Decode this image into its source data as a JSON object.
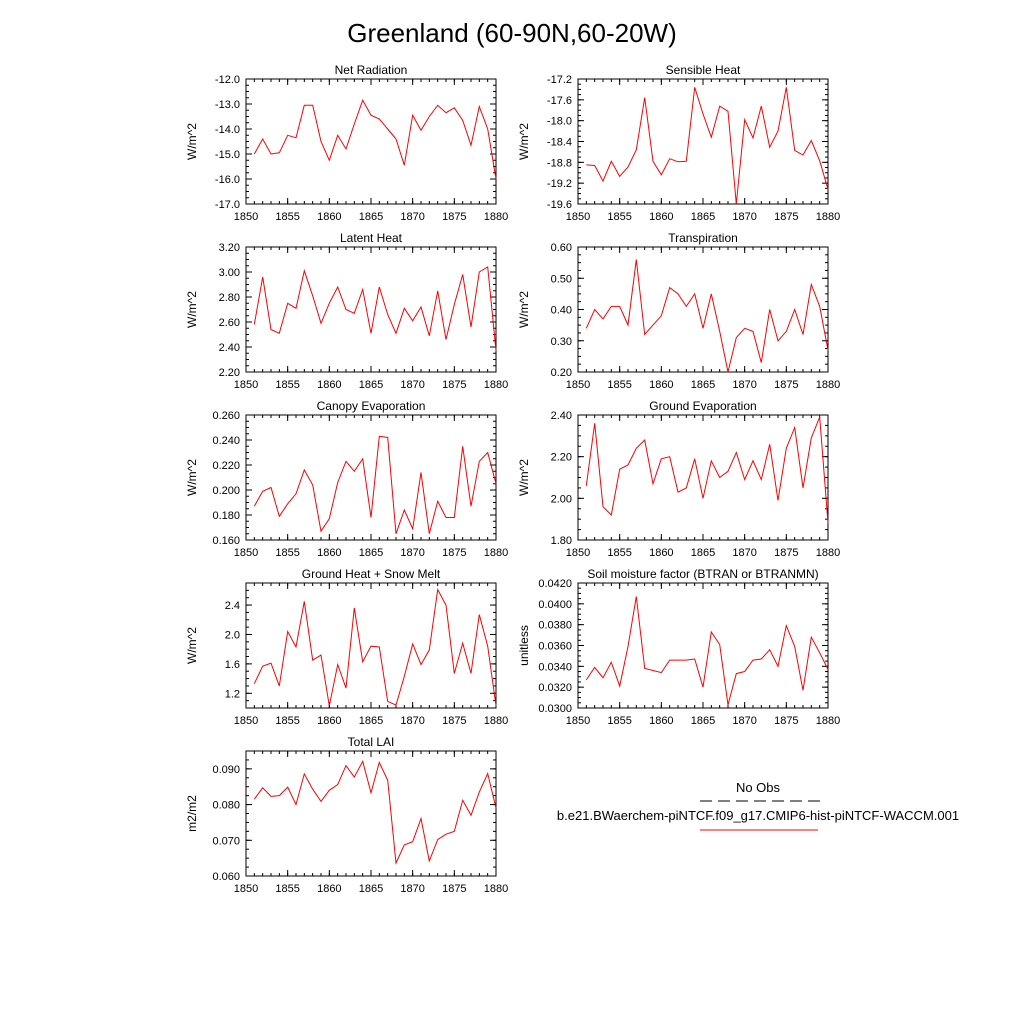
{
  "page_title": "Greenland (60-90N,60-20W)",
  "legend": {
    "obs_label": "No Obs",
    "case_label": "b.e21.BWaerchem-piNTCF.f09_g17.CMIP6-hist-piNTCF-WACCM.001",
    "obs_color": "#000000",
    "case_color": "#ff0000"
  },
  "colors": {
    "line": "#ff0000",
    "axis": "#000000"
  },
  "chart_data": [
    {
      "type": "line",
      "title": "Net Radiation",
      "xlabel": "",
      "ylabel": "W/m^2",
      "xlim": [
        1850,
        1880
      ],
      "ylim": [
        -17.0,
        -12.0
      ],
      "xticks": [
        1850,
        1855,
        1860,
        1865,
        1870,
        1875,
        1880
      ],
      "xtick_labels": [
        "1850",
        "1855",
        "1860",
        "1865",
        "1870",
        "1875",
        "1880"
      ],
      "yticks": [
        -17.0,
        -16.0,
        -15.0,
        -14.0,
        -13.0,
        -12.0
      ],
      "ytick_labels": [
        "-17.0",
        "-16.0",
        "-15.0",
        "-14.0",
        "-13.0",
        "-12.0"
      ],
      "x": [
        1851,
        1852,
        1853,
        1854,
        1855,
        1856,
        1857,
        1858,
        1859,
        1860,
        1861,
        1862,
        1863,
        1864,
        1865,
        1866,
        1867,
        1868,
        1869,
        1870,
        1871,
        1872,
        1873,
        1874,
        1875,
        1876,
        1877,
        1878,
        1879,
        1880
      ],
      "series": [
        {
          "values": [
            -15.0,
            -14.4,
            -15.0,
            -14.95,
            -14.25,
            -14.35,
            -13.05,
            -13.05,
            -14.5,
            -15.25,
            -14.25,
            -14.8,
            -13.8,
            -12.85,
            -13.45,
            -13.6,
            -14.0,
            -14.4,
            -15.45,
            -13.45,
            -14.05,
            -13.5,
            -13.05,
            -13.35,
            -13.15,
            -13.65,
            -14.65,
            -13.1,
            -14.0,
            -16.0
          ]
        }
      ]
    },
    {
      "type": "line",
      "title": "Sensible Heat",
      "xlabel": "",
      "ylabel": "W/m^2",
      "xlim": [
        1850,
        1880
      ],
      "ylim": [
        -19.6,
        -17.2
      ],
      "xticks": [
        1850,
        1855,
        1860,
        1865,
        1870,
        1875,
        1880
      ],
      "xtick_labels": [
        "1850",
        "1855",
        "1860",
        "1865",
        "1870",
        "1875",
        "1880"
      ],
      "yticks": [
        -19.6,
        -19.2,
        -18.8,
        -18.4,
        -18.0,
        -17.6,
        -17.2
      ],
      "ytick_labels": [
        "-19.6",
        "-19.2",
        "-18.8",
        "-18.4",
        "-18.0",
        "-17.6",
        "-17.2"
      ],
      "x": [
        1851,
        1852,
        1853,
        1854,
        1855,
        1856,
        1857,
        1858,
        1859,
        1860,
        1861,
        1862,
        1863,
        1864,
        1865,
        1866,
        1867,
        1868,
        1869,
        1870,
        1871,
        1872,
        1873,
        1874,
        1875,
        1876,
        1877,
        1878,
        1879,
        1880
      ],
      "series": [
        {
          "values": [
            -18.85,
            -18.86,
            -19.16,
            -18.78,
            -19.07,
            -18.89,
            -18.56,
            -17.56,
            -18.78,
            -19.04,
            -18.73,
            -18.79,
            -18.78,
            -17.36,
            -17.87,
            -18.32,
            -17.72,
            -17.82,
            -19.6,
            -17.98,
            -18.33,
            -17.72,
            -18.51,
            -18.2,
            -17.36,
            -18.57,
            -18.66,
            -18.38,
            -18.77,
            -19.32
          ]
        }
      ]
    },
    {
      "type": "line",
      "title": "Latent Heat",
      "xlabel": "",
      "ylabel": "W/m^2",
      "xlim": [
        1850,
        1880
      ],
      "ylim": [
        2.2,
        3.2
      ],
      "xticks": [
        1850,
        1855,
        1860,
        1865,
        1870,
        1875,
        1880
      ],
      "xtick_labels": [
        "1850",
        "1855",
        "1860",
        "1865",
        "1870",
        "1875",
        "1880"
      ],
      "yticks": [
        2.2,
        2.4,
        2.6,
        2.8,
        3.0,
        3.2
      ],
      "ytick_labels": [
        "2.20",
        "2.40",
        "2.60",
        "2.80",
        "3.00",
        "3.20"
      ],
      "x": [
        1851,
        1852,
        1853,
        1854,
        1855,
        1856,
        1857,
        1858,
        1859,
        1860,
        1861,
        1862,
        1863,
        1864,
        1865,
        1866,
        1867,
        1868,
        1869,
        1870,
        1871,
        1872,
        1873,
        1874,
        1875,
        1876,
        1877,
        1878,
        1879,
        1880
      ],
      "series": [
        {
          "values": [
            2.58,
            2.96,
            2.54,
            2.51,
            2.75,
            2.71,
            3.01,
            2.81,
            2.59,
            2.75,
            2.88,
            2.7,
            2.67,
            2.86,
            2.51,
            2.88,
            2.66,
            2.51,
            2.71,
            2.61,
            2.72,
            2.49,
            2.85,
            2.46,
            2.74,
            2.98,
            2.56,
            3.0,
            3.04,
            2.37
          ]
        }
      ]
    },
    {
      "type": "line",
      "title": "Transpiration",
      "xlabel": "",
      "ylabel": "W/m^2",
      "xlim": [
        1850,
        1880
      ],
      "ylim": [
        0.2,
        0.6
      ],
      "xticks": [
        1850,
        1855,
        1860,
        1865,
        1870,
        1875,
        1880
      ],
      "xtick_labels": [
        "1850",
        "1855",
        "1860",
        "1865",
        "1870",
        "1875",
        "1880"
      ],
      "yticks": [
        0.2,
        0.3,
        0.4,
        0.5,
        0.6
      ],
      "ytick_labels": [
        "0.20",
        "0.30",
        "0.40",
        "0.50",
        "0.60"
      ],
      "x": [
        1851,
        1852,
        1853,
        1854,
        1855,
        1856,
        1857,
        1858,
        1859,
        1860,
        1861,
        1862,
        1863,
        1864,
        1865,
        1866,
        1867,
        1868,
        1869,
        1870,
        1871,
        1872,
        1873,
        1874,
        1875,
        1876,
        1877,
        1878,
        1879,
        1880
      ],
      "series": [
        {
          "values": [
            0.34,
            0.4,
            0.37,
            0.41,
            0.41,
            0.35,
            0.56,
            0.32,
            0.35,
            0.38,
            0.47,
            0.45,
            0.41,
            0.45,
            0.34,
            0.45,
            0.33,
            0.2,
            0.31,
            0.34,
            0.33,
            0.23,
            0.4,
            0.3,
            0.33,
            0.4,
            0.32,
            0.48,
            0.41,
            0.27
          ]
        }
      ]
    },
    {
      "type": "line",
      "title": "Canopy Evaporation",
      "xlabel": "",
      "ylabel": "W/m^2",
      "xlim": [
        1850,
        1880
      ],
      "ylim": [
        0.16,
        0.26
      ],
      "xticks": [
        1850,
        1855,
        1860,
        1865,
        1870,
        1875,
        1880
      ],
      "xtick_labels": [
        "1850",
        "1855",
        "1860",
        "1865",
        "1870",
        "1875",
        "1880"
      ],
      "yticks": [
        0.16,
        0.18,
        0.2,
        0.22,
        0.24,
        0.26
      ],
      "ytick_labels": [
        "0.160",
        "0.180",
        "0.200",
        "0.220",
        "0.240",
        "0.260"
      ],
      "x": [
        1851,
        1852,
        1853,
        1854,
        1855,
        1856,
        1857,
        1858,
        1859,
        1860,
        1861,
        1862,
        1863,
        1864,
        1865,
        1866,
        1867,
        1868,
        1869,
        1870,
        1871,
        1872,
        1873,
        1874,
        1875,
        1876,
        1877,
        1878,
        1879,
        1880
      ],
      "series": [
        {
          "values": [
            0.187,
            0.199,
            0.202,
            0.179,
            0.189,
            0.197,
            0.216,
            0.204,
            0.167,
            0.177,
            0.206,
            0.223,
            0.215,
            0.225,
            0.178,
            0.243,
            0.242,
            0.165,
            0.184,
            0.169,
            0.214,
            0.165,
            0.191,
            0.178,
            0.178,
            0.235,
            0.187,
            0.223,
            0.23,
            0.205
          ]
        }
      ]
    },
    {
      "type": "line",
      "title": "Ground Evaporation",
      "xlabel": "",
      "ylabel": "W/m^2",
      "xlim": [
        1850,
        1880
      ],
      "ylim": [
        1.8,
        2.4
      ],
      "xticks": [
        1850,
        1855,
        1860,
        1865,
        1870,
        1875,
        1880
      ],
      "xtick_labels": [
        "1850",
        "1855",
        "1860",
        "1865",
        "1870",
        "1875",
        "1880"
      ],
      "yticks": [
        1.8,
        2.0,
        2.2,
        2.4
      ],
      "ytick_labels": [
        "1.80",
        "2.00",
        "2.20",
        "2.40"
      ],
      "x": [
        1851,
        1852,
        1853,
        1854,
        1855,
        1856,
        1857,
        1858,
        1859,
        1860,
        1861,
        1862,
        1863,
        1864,
        1865,
        1866,
        1867,
        1868,
        1869,
        1870,
        1871,
        1872,
        1873,
        1874,
        1875,
        1876,
        1877,
        1878,
        1879,
        1880
      ],
      "series": [
        {
          "values": [
            2.06,
            2.36,
            1.96,
            1.92,
            2.14,
            2.16,
            2.24,
            2.28,
            2.07,
            2.19,
            2.2,
            2.03,
            2.05,
            2.19,
            2.0,
            2.18,
            2.1,
            2.13,
            2.22,
            2.09,
            2.18,
            2.09,
            2.26,
            1.99,
            2.24,
            2.34,
            2.05,
            2.29,
            2.39,
            1.88
          ]
        }
      ]
    },
    {
      "type": "line",
      "title": "Ground Heat + Snow Melt",
      "xlabel": "",
      "ylabel": "W/m^2",
      "xlim": [
        1850,
        1880
      ],
      "ylim": [
        1.0,
        2.7
      ],
      "xticks": [
        1850,
        1855,
        1860,
        1865,
        1870,
        1875,
        1880
      ],
      "xtick_labels": [
        "1850",
        "1855",
        "1860",
        "1865",
        "1870",
        "1875",
        "1880"
      ],
      "yticks": [
        1.2,
        1.6,
        2.0,
        2.4
      ],
      "ytick_labels": [
        "1.2",
        "1.6",
        "2.0",
        "2.4"
      ],
      "x": [
        1851,
        1852,
        1853,
        1854,
        1855,
        1856,
        1857,
        1858,
        1859,
        1860,
        1861,
        1862,
        1863,
        1864,
        1865,
        1866,
        1867,
        1868,
        1869,
        1870,
        1871,
        1872,
        1873,
        1874,
        1875,
        1876,
        1877,
        1878,
        1879,
        1880
      ],
      "series": [
        {
          "values": [
            1.33,
            1.57,
            1.61,
            1.3,
            2.04,
            1.83,
            2.45,
            1.65,
            1.72,
            1.03,
            1.59,
            1.27,
            2.36,
            1.63,
            1.84,
            1.83,
            1.09,
            1.04,
            1.43,
            1.87,
            1.59,
            1.79,
            2.61,
            2.4,
            1.47,
            1.88,
            1.47,
            2.27,
            1.84,
            1.03
          ]
        }
      ]
    },
    {
      "type": "line",
      "title": "Soil moisture factor (BTRAN or BTRANMN)",
      "xlabel": "",
      "ylabel": "unitless",
      "xlim": [
        1850,
        1880
      ],
      "ylim": [
        0.03,
        0.042
      ],
      "xticks": [
        1850,
        1855,
        1860,
        1865,
        1870,
        1875,
        1880
      ],
      "xtick_labels": [
        "1850",
        "1855",
        "1860",
        "1865",
        "1870",
        "1875",
        "1880"
      ],
      "yticks": [
        0.03,
        0.032,
        0.034,
        0.036,
        0.038,
        0.04,
        0.042
      ],
      "ytick_labels": [
        "0.0300",
        "0.0320",
        "0.0340",
        "0.0360",
        "0.0380",
        "0.0400",
        "0.0420"
      ],
      "x": [
        1851,
        1852,
        1853,
        1854,
        1855,
        1856,
        1857,
        1858,
        1859,
        1860,
        1861,
        1862,
        1863,
        1864,
        1865,
        1866,
        1867,
        1868,
        1869,
        1870,
        1871,
        1872,
        1873,
        1874,
        1875,
        1876,
        1877,
        1878,
        1879,
        1880
      ],
      "series": [
        {
          "values": [
            0.0327,
            0.0339,
            0.0329,
            0.0344,
            0.0321,
            0.0359,
            0.0407,
            0.0338,
            0.0336,
            0.0334,
            0.0346,
            0.0346,
            0.0346,
            0.0347,
            0.032,
            0.0373,
            0.0361,
            0.0303,
            0.0333,
            0.0335,
            0.0346,
            0.0347,
            0.0356,
            0.034,
            0.0379,
            0.0359,
            0.0317,
            0.0368,
            0.0353,
            0.0337
          ]
        }
      ]
    },
    {
      "type": "line",
      "title": "Total LAI",
      "xlabel": "",
      "ylabel": "m2/m2",
      "xlim": [
        1850,
        1880
      ],
      "ylim": [
        0.06,
        0.095
      ],
      "xticks": [
        1850,
        1855,
        1860,
        1865,
        1870,
        1875,
        1880
      ],
      "xtick_labels": [
        "1850",
        "1855",
        "1860",
        "1865",
        "1870",
        "1875",
        "1880"
      ],
      "yticks": [
        0.06,
        0.07,
        0.08,
        0.09
      ],
      "ytick_labels": [
        "0.060",
        "0.070",
        "0.080",
        "0.090"
      ],
      "x": [
        1851,
        1852,
        1853,
        1854,
        1855,
        1856,
        1857,
        1858,
        1859,
        1860,
        1861,
        1862,
        1863,
        1864,
        1865,
        1866,
        1867,
        1868,
        1869,
        1870,
        1871,
        1872,
        1873,
        1874,
        1875,
        1876,
        1877,
        1878,
        1879,
        1880
      ],
      "series": [
        {
          "values": [
            0.0815,
            0.0847,
            0.0823,
            0.0825,
            0.0849,
            0.08,
            0.0886,
            0.0843,
            0.0809,
            0.084,
            0.0856,
            0.0909,
            0.0877,
            0.0921,
            0.0833,
            0.0918,
            0.0868,
            0.0636,
            0.0687,
            0.0696,
            0.0761,
            0.0642,
            0.0702,
            0.0717,
            0.0725,
            0.0812,
            0.077,
            0.0835,
            0.0887,
            0.079
          ]
        }
      ]
    }
  ]
}
